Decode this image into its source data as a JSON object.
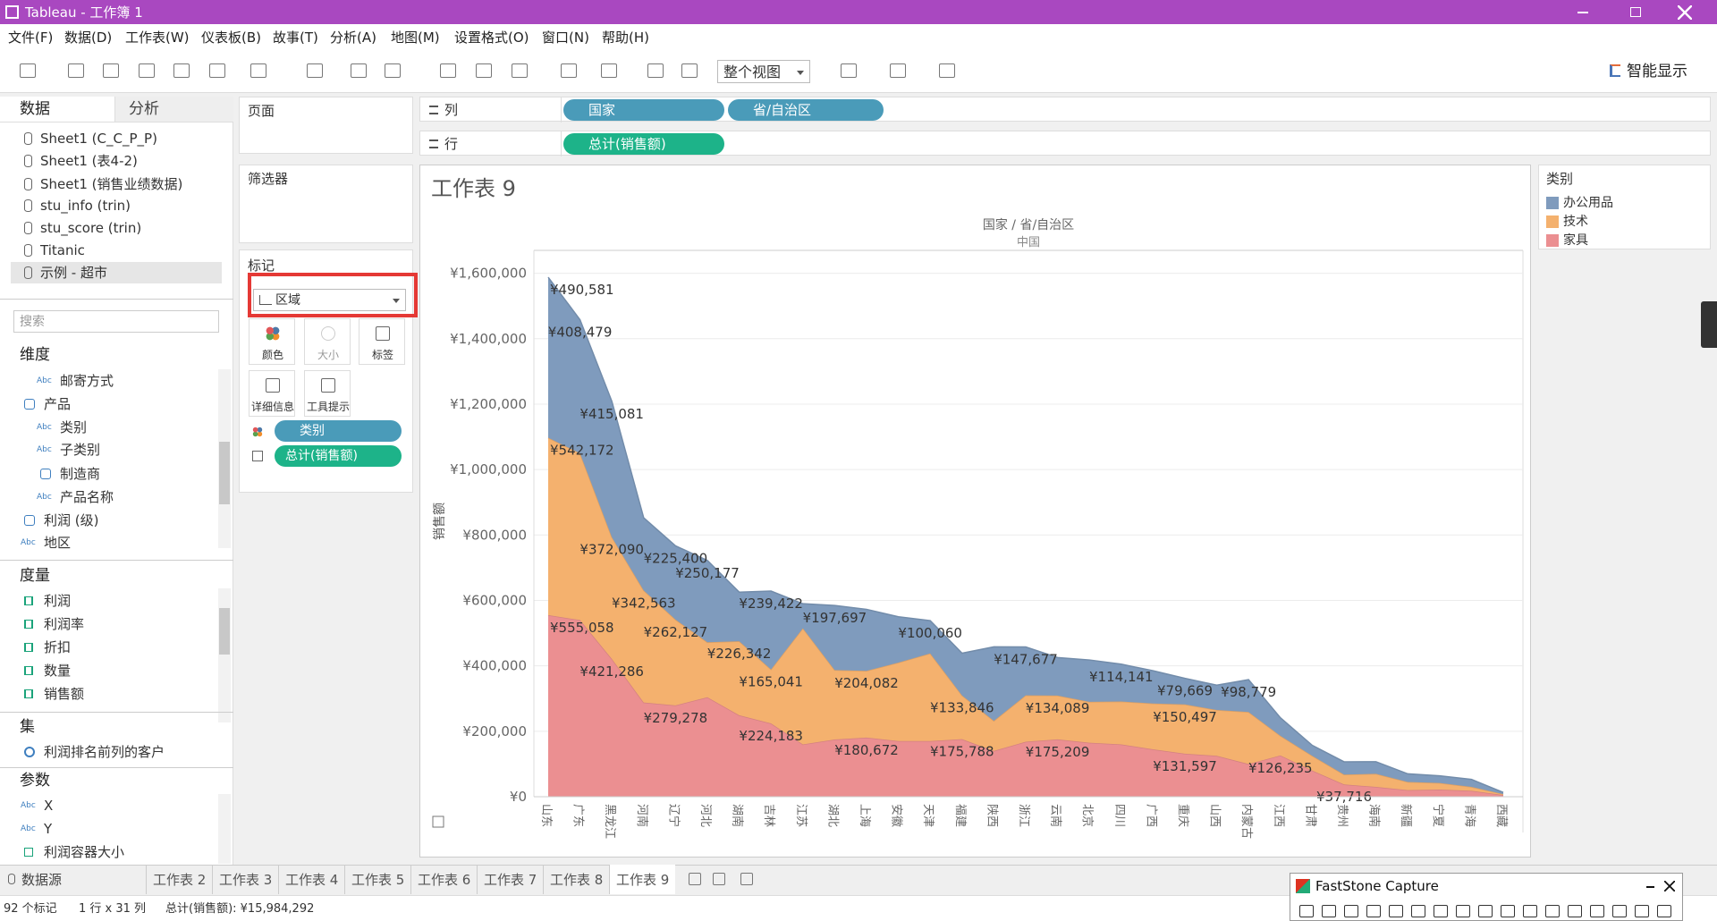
{
  "title_bar": {
    "title": "Tableau - 工作簿 1"
  },
  "menu": [
    "文件(F)",
    "数据(D)",
    "工作表(W)",
    "仪表板(B)",
    "故事(T)",
    "分析(A)",
    "地图(M)",
    "设置格式(O)",
    "窗口(N)",
    "帮助(H)"
  ],
  "toolbar": {
    "fit": "整个视图",
    "show_me": "智能显示"
  },
  "data_pane": {
    "tabs": [
      "数据",
      "分析"
    ],
    "sources": [
      "Sheet1 (C_C_P_P)",
      "Sheet1 (表4-2)",
      "Sheet1 (销售业绩数据)",
      "stu_info (trin)",
      "stu_score (trin)",
      "Titanic",
      "示例 - 超市"
    ],
    "search_placeholder": "搜索",
    "dimensions_title": "维度",
    "dimensions": [
      {
        "icon": "Abc",
        "label": "邮寄方式"
      },
      {
        "label": "产品"
      },
      {
        "icon": "Abc",
        "label": "类别"
      },
      {
        "icon": "Abc",
        "label": "子类别"
      },
      {
        "label": "制造商"
      },
      {
        "icon": "Abc",
        "label": "产品名称"
      },
      {
        "label": "利润 (级)"
      },
      {
        "icon": "Abc",
        "label": "地区"
      }
    ],
    "measures_title": "度量",
    "measures": [
      "利润",
      "利润率",
      "折扣",
      "数量",
      "销售额"
    ],
    "sets_title": "集",
    "sets": [
      "利润排名前列的客户"
    ],
    "parameters_title": "参数",
    "parameters": [
      {
        "icon": "Abc",
        "label": "X"
      },
      {
        "icon": "Abc",
        "label": "Y"
      },
      {
        "label": "利润容器大小"
      }
    ]
  },
  "shelves": {
    "pages": "页面",
    "filters": "筛选器",
    "marks": "标记",
    "mark_type": "区域",
    "mark_buttons": [
      "颜色",
      "大小",
      "标签",
      "详细信息",
      "工具提示"
    ],
    "mark_pills": [
      "类别",
      "总计(销售额)"
    ],
    "columns_label": "列",
    "columns": [
      "国家",
      "省/自治区"
    ],
    "rows_label": "行",
    "rows": [
      "总计(销售额)"
    ]
  },
  "legend": {
    "title": "类别"
  },
  "sheet_tabs": [
    "数据源",
    "工作表 2",
    "工作表 3",
    "工作表 4",
    "工作表 5",
    "工作表 6",
    "工作表 7",
    "工作表 8",
    "工作表 9"
  ],
  "status": [
    "92 个标记",
    "1 行 x 31 列",
    "总计(销售额): ¥15,984,292"
  ],
  "faststone": {
    "title": "FastStone Capture"
  },
  "chart_data": {
    "type": "area",
    "stacked": true,
    "grid": true,
    "title": "工作表 9",
    "header": "国家 / 省/自治区",
    "subheader": "中国",
    "y_label": "销售额",
    "categories": [
      "山东",
      "广东",
      "黑龙江",
      "河南",
      "辽宁",
      "河北",
      "湖南",
      "吉林",
      "江苏",
      "湖北",
      "上海",
      "安徽",
      "天津",
      "福建",
      "陕西",
      "浙江",
      "云南",
      "北京",
      "四川",
      "广西",
      "重庆",
      "山西",
      "内蒙古",
      "江西",
      "甘肃",
      "贵州",
      "海南",
      "新疆",
      "宁夏",
      "青海",
      "西藏"
    ],
    "series": [
      {
        "name": "办公用品",
        "color": "#7f9bbd",
        "values": [
          490581,
          408479,
          415081,
          222000,
          225400,
          250177,
          150000,
          239422,
          75000,
          197697,
          188000,
          140000,
          100060,
          129000,
          226000,
          147677,
          116000,
          128000,
          114141,
          100000,
          79669,
          76000,
          98779,
          55000,
          32000,
          39000,
          37000,
          25000,
          22000,
          23000,
          5000
        ],
        "value_labels": [
          "¥490,581",
          "¥408,479",
          "¥415,081",
          null,
          "¥225,400",
          "¥250,177",
          null,
          "¥239,422",
          null,
          "¥197,697",
          null,
          null,
          "¥100,060",
          null,
          null,
          "¥147,677",
          null,
          null,
          "¥114,141",
          null,
          "¥79,669",
          null,
          "¥98,779",
          null,
          null,
          null,
          null,
          null,
          null,
          null,
          null
        ]
      },
      {
        "name": "技术",
        "color": "#f4b16e",
        "values": [
          542172,
          509521,
          372090,
          342563,
          262127,
          168000,
          226342,
          165041,
          355000,
          212000,
          204082,
          240000,
          268000,
          133846,
          92000,
          142000,
          134089,
          125000,
          131000,
          140000,
          150497,
          140000,
          159000,
          60000,
          45000,
          30000,
          40000,
          25000,
          20000,
          12000,
          3000
        ],
        "value_labels": [
          "¥542,172",
          null,
          "¥372,090",
          "¥342,563",
          "¥262,127",
          null,
          "¥226,342",
          "¥165,041",
          null,
          null,
          "¥204,082",
          null,
          null,
          "¥133,846",
          null,
          null,
          "¥134,089",
          null,
          null,
          null,
          "¥150,497",
          null,
          null,
          null,
          null,
          null,
          null,
          null,
          null,
          null,
          null
        ]
      },
      {
        "name": "家具",
        "color": "#eb8f91",
        "values": [
          555058,
          540000,
          421286,
          288000,
          279278,
          304000,
          249000,
          224183,
          160000,
          175000,
          180672,
          170000,
          170000,
          175788,
          140000,
          168000,
          175209,
          165000,
          160000,
          145000,
          131597,
          125000,
          100000,
          126235,
          80000,
          37716,
          30000,
          20000,
          22000,
          18000,
          5000
        ],
        "value_labels": [
          "¥555,058",
          null,
          "¥421,286",
          null,
          "¥279,278",
          null,
          null,
          "¥224,183",
          null,
          null,
          "¥180,672",
          null,
          null,
          "¥175,788",
          null,
          null,
          "¥175,209",
          null,
          null,
          null,
          "¥131,597",
          null,
          null,
          "¥126,235",
          null,
          "¥37,716",
          null,
          null,
          null,
          null,
          null
        ]
      }
    ],
    "ylim": [
      0,
      1670000
    ],
    "yticks": [
      {
        "value": 0,
        "label": "¥0"
      },
      {
        "value": 200000,
        "label": "¥200,000"
      },
      {
        "value": 400000,
        "label": "¥400,000"
      },
      {
        "value": 600000,
        "label": "¥600,000"
      },
      {
        "value": 800000,
        "label": "¥800,000"
      },
      {
        "value": 1000000,
        "label": "¥1,000,000"
      },
      {
        "value": 1200000,
        "label": "¥1,200,000"
      },
      {
        "value": 1400000,
        "label": "¥1,400,000"
      },
      {
        "value": 1600000,
        "label": "¥1,600,000"
      }
    ]
  }
}
